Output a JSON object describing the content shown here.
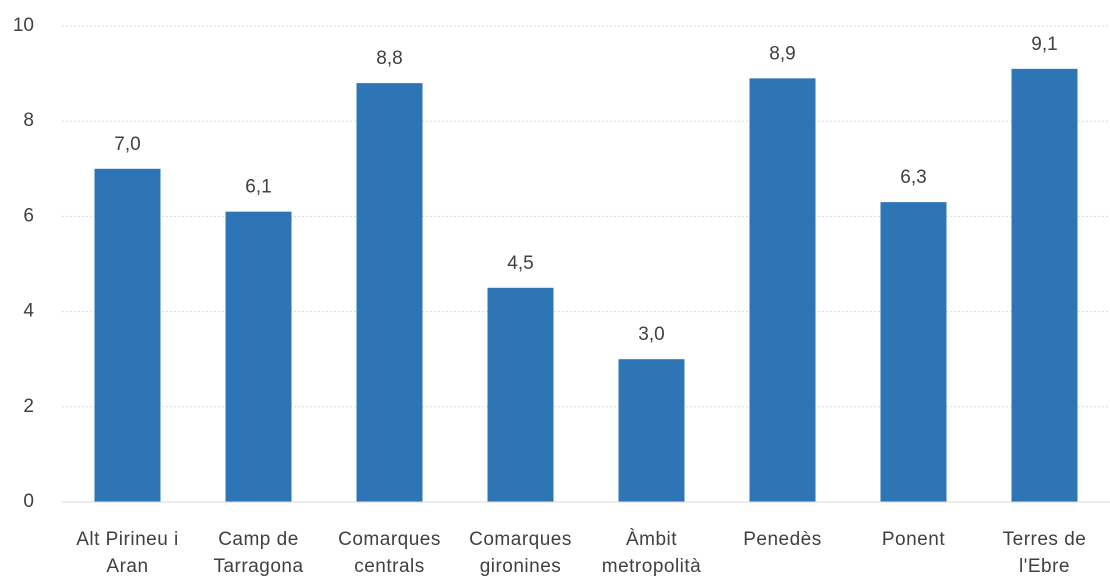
{
  "chart_data": {
    "type": "bar",
    "categories": [
      "Alt Pirineu i Aran",
      "Camp de Tarragona",
      "Comarques centrals",
      "Comarques gironines",
      "Àmbit metropolità",
      "Penedès",
      "Ponent",
      "Terres de l'Ebre"
    ],
    "values": [
      7.0,
      6.1,
      8.8,
      4.5,
      3.0,
      8.9,
      6.3,
      9.1
    ],
    "value_labels": [
      "7,0",
      "6,1",
      "8,8",
      "4,5",
      "3,0",
      "8,9",
      "6,3",
      "9,1"
    ],
    "color": "#2e75b6",
    "ylim": [
      0,
      10
    ],
    "yticks": [
      0,
      2,
      4,
      6,
      8,
      10
    ],
    "grid": true
  }
}
